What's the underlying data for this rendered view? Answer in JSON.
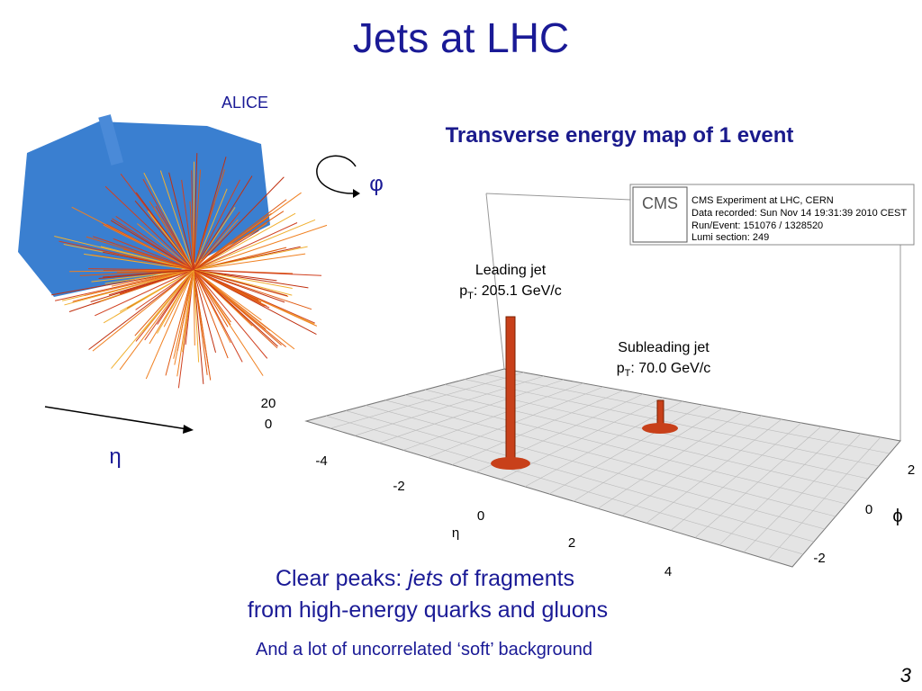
{
  "header": {
    "title": "Jets at LHC"
  },
  "alice": {
    "label": "ALICE",
    "phi": "φ",
    "eta": "η"
  },
  "plot": {
    "title": "Transverse energy map of 1 event",
    "cms": {
      "logo": "CMS",
      "lines": [
        "CMS Experiment at LHC, CERN",
        "Data recorded: Sun Nov 14 19:31:39 2010 CEST",
        "Run/Event: 151076 / 1328520",
        "Lumi section: 249"
      ]
    },
    "leading": {
      "name": "Leading jet",
      "p": "p",
      "sub": "T",
      "value": ": 205.1 GeV/c"
    },
    "subleading": {
      "name": "Subleading jet",
      "p": "p",
      "sub": "T",
      "value": ": 70.0 GeV/c"
    },
    "z_ticks": [
      "20",
      "0"
    ],
    "eta_ticks": [
      "-4",
      "-2",
      "0",
      "2",
      "4"
    ],
    "eta_label": "η",
    "phi_ticks": [
      "2",
      "0",
      "-2"
    ],
    "phi_label": "ϕ"
  },
  "caption": {
    "line1_a": "Clear peaks: ",
    "line1_b": "jets",
    "line1_c": " of fragments",
    "line2": "from high-energy quarks and gluons",
    "line3": "And a lot of uncorrelated ‘soft’ background"
  },
  "page_number": "3"
}
